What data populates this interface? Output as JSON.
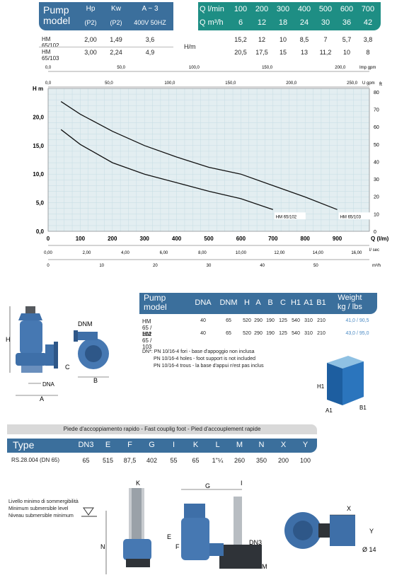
{
  "perf_table": {
    "header_left": {
      "model_label": "Pump\nmodel",
      "cols": [
        {
          "top": "Hp",
          "bottom": "(P2)"
        },
        {
          "top": "Kw",
          "bottom": "(P2)"
        },
        {
          "top": "A ~ 3",
          "bottom": "400V 50HZ"
        }
      ]
    },
    "header_right": {
      "q1_label": "Q l/min",
      "q2_label": "Q m³/h",
      "lmin": [
        "100",
        "200",
        "300",
        "400",
        "500",
        "600",
        "700"
      ],
      "m3h": [
        "6",
        "12",
        "18",
        "24",
        "30",
        "36",
        "42"
      ]
    },
    "h_label": "H/m",
    "rows": [
      {
        "model": "HM 65/102",
        "hp": "2,00",
        "kw": "1,49",
        "a": "3,6",
        "h": [
          "15,2",
          "12",
          "10",
          "8,5",
          "7",
          "5,7",
          "3,8"
        ]
      },
      {
        "model": "HM 65/103",
        "hp": "3,00",
        "kw": "2,24",
        "a": "4,9",
        "h": [
          "20,5",
          "17,5",
          "15",
          "13",
          "11,2",
          "10",
          "8"
        ]
      }
    ]
  },
  "chart_data": {
    "type": "line",
    "x_label": "Q (l/m)",
    "y_label": "H m",
    "right_label": "ft",
    "x_ticks": [
      "0",
      "100",
      "200",
      "300",
      "400",
      "500",
      "600",
      "700",
      "800",
      "900"
    ],
    "y_ticks": [
      "0,0",
      "5,0",
      "10,0",
      "15,0",
      "20,0"
    ],
    "ft_ticks": [
      "0",
      "10",
      "20",
      "30",
      "40",
      "50",
      "60",
      "70",
      "80"
    ],
    "imp_label": "Imp gpm",
    "imp_ticks": [
      "0,0",
      "50,0",
      "100,0",
      "150,0",
      "200,0"
    ],
    "us_label": "U gpm",
    "us_ticks": [
      "0,0",
      "50,0",
      "100,0",
      "150,0",
      "200,0",
      "250,0"
    ],
    "lsec_label": "l/ sec",
    "lsec_ticks": [
      "0,00",
      "2,00",
      "4,00",
      "6,00",
      "8,00",
      "10,00",
      "12,00",
      "14,00",
      "16,00"
    ],
    "m3h_label": "m³/h",
    "m3h_ticks": [
      "0",
      "10",
      "20",
      "30",
      "40",
      "50"
    ],
    "xlim": [
      0,
      1000
    ],
    "ylim": [
      0,
      25
    ],
    "series": [
      {
        "name": "HM 65/102",
        "x": [
          40,
          100,
          200,
          300,
          400,
          500,
          600,
          700
        ],
        "y": [
          17.8,
          15.2,
          12,
          10,
          8.5,
          7,
          5.7,
          3.8
        ]
      },
      {
        "name": "HM 65/103",
        "x": [
          40,
          100,
          200,
          300,
          400,
          500,
          600,
          700,
          800,
          900
        ],
        "y": [
          22.7,
          20.5,
          17.5,
          15,
          13,
          11.2,
          10,
          8,
          6,
          3.8
        ]
      }
    ]
  },
  "dims_table": {
    "model_label": "Pump\nmodel",
    "cols": [
      "DNA",
      "DNM",
      "H",
      "A",
      "B",
      "C",
      "H1",
      "A1",
      "B1"
    ],
    "weight_label": "Weight\nkg / lbs",
    "rows": [
      {
        "model": "HM 65 / 102",
        "vals": [
          "40",
          "65",
          "520",
          "290",
          "190",
          "125",
          "540",
          "310",
          "210"
        ],
        "weight": "41,0 / 90,5"
      },
      {
        "model": "HM 65 / 103",
        "vals": [
          "40",
          "65",
          "520",
          "290",
          "190",
          "125",
          "540",
          "310",
          "210"
        ],
        "weight": "43,0 / 95,0"
      }
    ],
    "notes": [
      "DN*: PN 10/16-4 fori - base d'appoggio non inclusa",
      "PN 10/16-4 holes - foot support is not included",
      "PN 10/16-4 trous - la base d'appui n'est pas inclus"
    ]
  },
  "pump_labels": {
    "dnm": "DNM",
    "h": "H",
    "c": "C",
    "dna": "DNA",
    "a": "A",
    "b": "B",
    "h1": "H1",
    "a1": "A1",
    "b1": "B1"
  },
  "foot_table": {
    "title": "Piede d'accoppiamento rapido - Fast couplig foot - Pied d'accouplement rapide",
    "type_label": "Type",
    "cols": [
      "DN3",
      "E",
      "F",
      "G",
      "I",
      "K",
      "L",
      "M",
      "N",
      "X",
      "Y"
    ],
    "row": {
      "type": "RS.28.004 (DN 65)",
      "vals": [
        "65",
        "515",
        "87,5",
        "402",
        "55",
        "65",
        "1\"¼",
        "260",
        "350",
        "200",
        "100"
      ]
    }
  },
  "level_notes": [
    "Livello minimo di sommergibilità",
    "Minimum submersible level",
    "Niveau submersible minimum"
  ],
  "install_labels": {
    "k": "K",
    "g": "G",
    "i": "I",
    "e": "E",
    "n": "N",
    "f": "F",
    "m": "M",
    "dn3": "DN3",
    "x": "X",
    "y": "Y",
    "dia": "Ø 14"
  },
  "colors": {
    "blue": "#3b6f9c",
    "teal": "#1e8e84",
    "grid": "#cfe3ea",
    "chart_bg": "#e3eef1",
    "pump": "#3e6fa8"
  }
}
